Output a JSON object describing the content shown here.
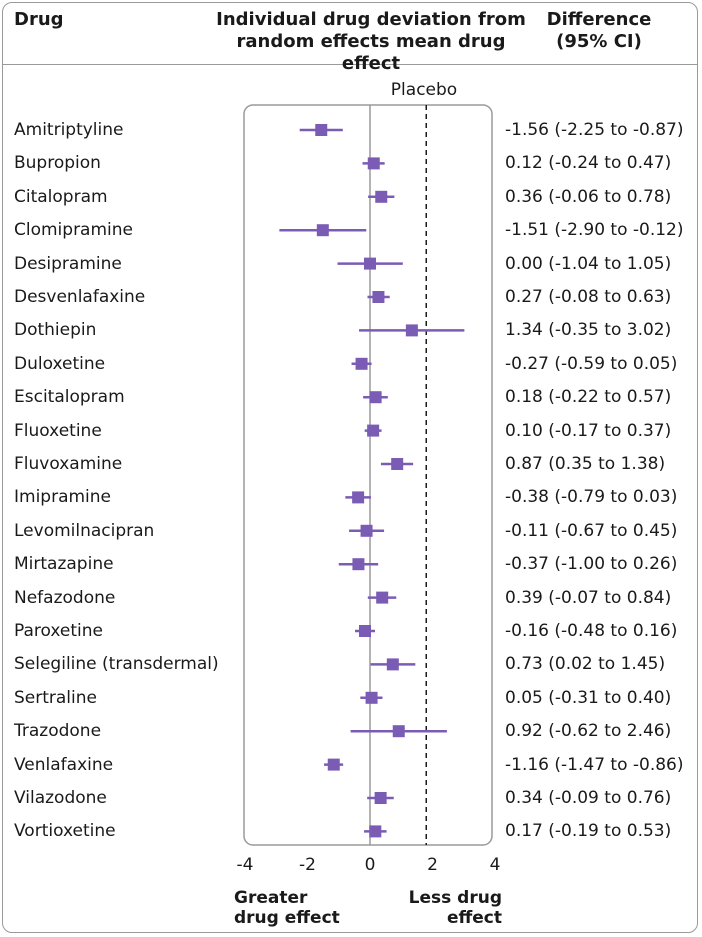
{
  "header": {
    "drug": "Drug",
    "deviation_line1": "Individual drug deviation from",
    "deviation_line2": "random effects mean drug effect",
    "difference_line1": "Difference",
    "difference_line2": "(95% CI)"
  },
  "colors": {
    "marker": "#7b5cb5",
    "axis": "#9a9a9a",
    "text": "#1a1a1a"
  },
  "chart_data": {
    "type": "forest",
    "title": "Individual drug deviation from random effects mean drug effect",
    "xlim": [
      -4,
      4
    ],
    "xticks": [
      "-4",
      "-2",
      "0",
      "2",
      "4"
    ],
    "xtick_values": [
      -4,
      -2,
      0,
      2,
      4
    ],
    "reference_label": "Placebo",
    "reference_value": 0,
    "dashed_line_value": 1.8,
    "left_annotation_line1": "Greater",
    "left_annotation_line2": "drug effect",
    "right_annotation_line1": "Less drug",
    "right_annotation_line2": "effect",
    "rows": [
      {
        "drug": "Amitriptyline",
        "est": -1.56,
        "lo": -2.25,
        "hi": -0.87,
        "label": "-1.56 (-2.25 to -0.87)"
      },
      {
        "drug": "Bupropion",
        "est": 0.12,
        "lo": -0.24,
        "hi": 0.47,
        "label": "0.12 (-0.24 to 0.47)"
      },
      {
        "drug": "Citalopram",
        "est": 0.36,
        "lo": -0.06,
        "hi": 0.78,
        "label": "0.36 (-0.06 to 0.78)"
      },
      {
        "drug": "Clomipramine",
        "est": -1.51,
        "lo": -2.9,
        "hi": -0.12,
        "label": "-1.51 (-2.90 to -0.12)"
      },
      {
        "drug": "Desipramine",
        "est": 0.0,
        "lo": -1.04,
        "hi": 1.05,
        "label": "0.00 (-1.04 to 1.05)"
      },
      {
        "drug": "Desvenlafaxine",
        "est": 0.27,
        "lo": -0.08,
        "hi": 0.63,
        "label": "0.27 (-0.08 to 0.63)"
      },
      {
        "drug": "Dothiepin",
        "est": 1.34,
        "lo": -0.35,
        "hi": 3.02,
        "label": "1.34 (-0.35 to 3.02)"
      },
      {
        "drug": "Duloxetine",
        "est": -0.27,
        "lo": -0.59,
        "hi": 0.05,
        "label": "-0.27 (-0.59 to 0.05)"
      },
      {
        "drug": "Escitalopram",
        "est": 0.18,
        "lo": -0.22,
        "hi": 0.57,
        "label": "0.18 (-0.22 to 0.57)"
      },
      {
        "drug": "Fluoxetine",
        "est": 0.1,
        "lo": -0.17,
        "hi": 0.37,
        "label": "0.10 (-0.17 to 0.37)"
      },
      {
        "drug": "Fluvoxamine",
        "est": 0.87,
        "lo": 0.35,
        "hi": 1.38,
        "label": "0.87 (0.35 to 1.38)"
      },
      {
        "drug": "Imipramine",
        "est": -0.38,
        "lo": -0.79,
        "hi": 0.03,
        "label": "-0.38 (-0.79 to 0.03)"
      },
      {
        "drug": "Levomilnacipran",
        "est": -0.11,
        "lo": -0.67,
        "hi": 0.45,
        "label": "-0.11 (-0.67 to 0.45)"
      },
      {
        "drug": "Mirtazapine",
        "est": -0.37,
        "lo": -1.0,
        "hi": 0.26,
        "label": "-0.37 (-1.00 to 0.26)"
      },
      {
        "drug": "Nefazodone",
        "est": 0.39,
        "lo": -0.07,
        "hi": 0.84,
        "label": "0.39 (-0.07 to 0.84)"
      },
      {
        "drug": "Paroxetine",
        "est": -0.16,
        "lo": -0.48,
        "hi": 0.16,
        "label": "-0.16 (-0.48 to 0.16)"
      },
      {
        "drug": "Selegiline (transdermal)",
        "est": 0.73,
        "lo": 0.02,
        "hi": 1.45,
        "label": "0.73 (0.02 to 1.45)"
      },
      {
        "drug": "Sertraline",
        "est": 0.05,
        "lo": -0.31,
        "hi": 0.4,
        "label": "0.05 (-0.31 to 0.40)"
      },
      {
        "drug": "Trazodone",
        "est": 0.92,
        "lo": -0.62,
        "hi": 2.46,
        "label": "0.92 (-0.62 to 2.46)"
      },
      {
        "drug": "Venlafaxine",
        "est": -1.16,
        "lo": -1.47,
        "hi": -0.86,
        "label": "-1.16 (-1.47 to -0.86)"
      },
      {
        "drug": "Vilazodone",
        "est": 0.34,
        "lo": -0.09,
        "hi": 0.76,
        "label": "0.34 (-0.09 to 0.76)"
      },
      {
        "drug": "Vortioxetine",
        "est": 0.17,
        "lo": -0.19,
        "hi": 0.53,
        "label": "0.17 (-0.19 to 0.53)"
      }
    ]
  }
}
